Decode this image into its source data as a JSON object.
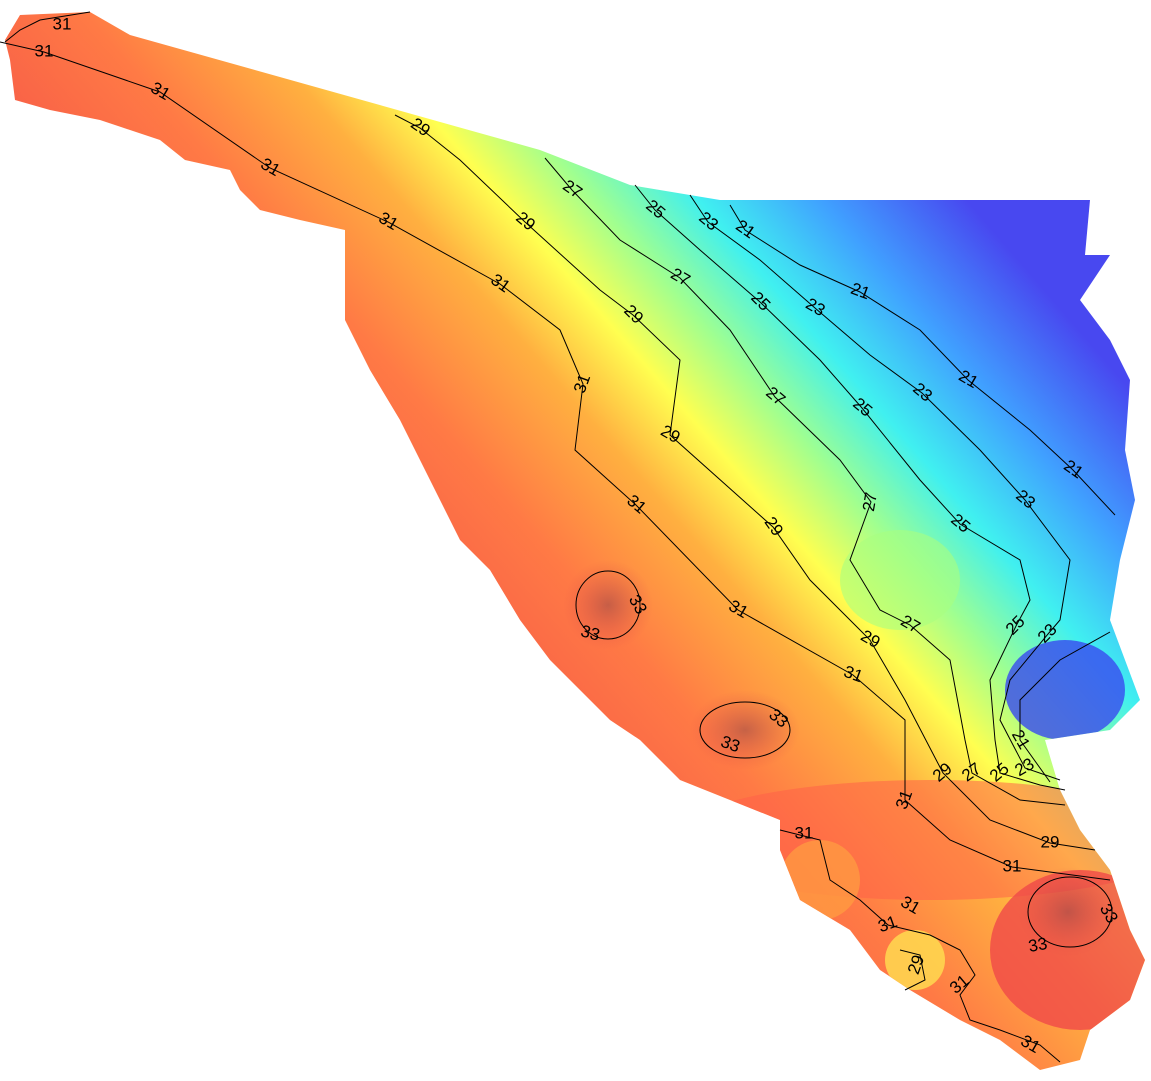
{
  "contour_labels": [
    31,
    31,
    31,
    29,
    31,
    27,
    25,
    23,
    21,
    29,
    31,
    31,
    27,
    25,
    23,
    21,
    29,
    21,
    31,
    23,
    27,
    25,
    29,
    21,
    27,
    31,
    23,
    29,
    25,
    33,
    33,
    31,
    27,
    25,
    29,
    23,
    31,
    33,
    33,
    21,
    23,
    29,
    27,
    25,
    31,
    29,
    31,
    31,
    31,
    33,
    31,
    33,
    29,
    31,
    31
  ]
}
